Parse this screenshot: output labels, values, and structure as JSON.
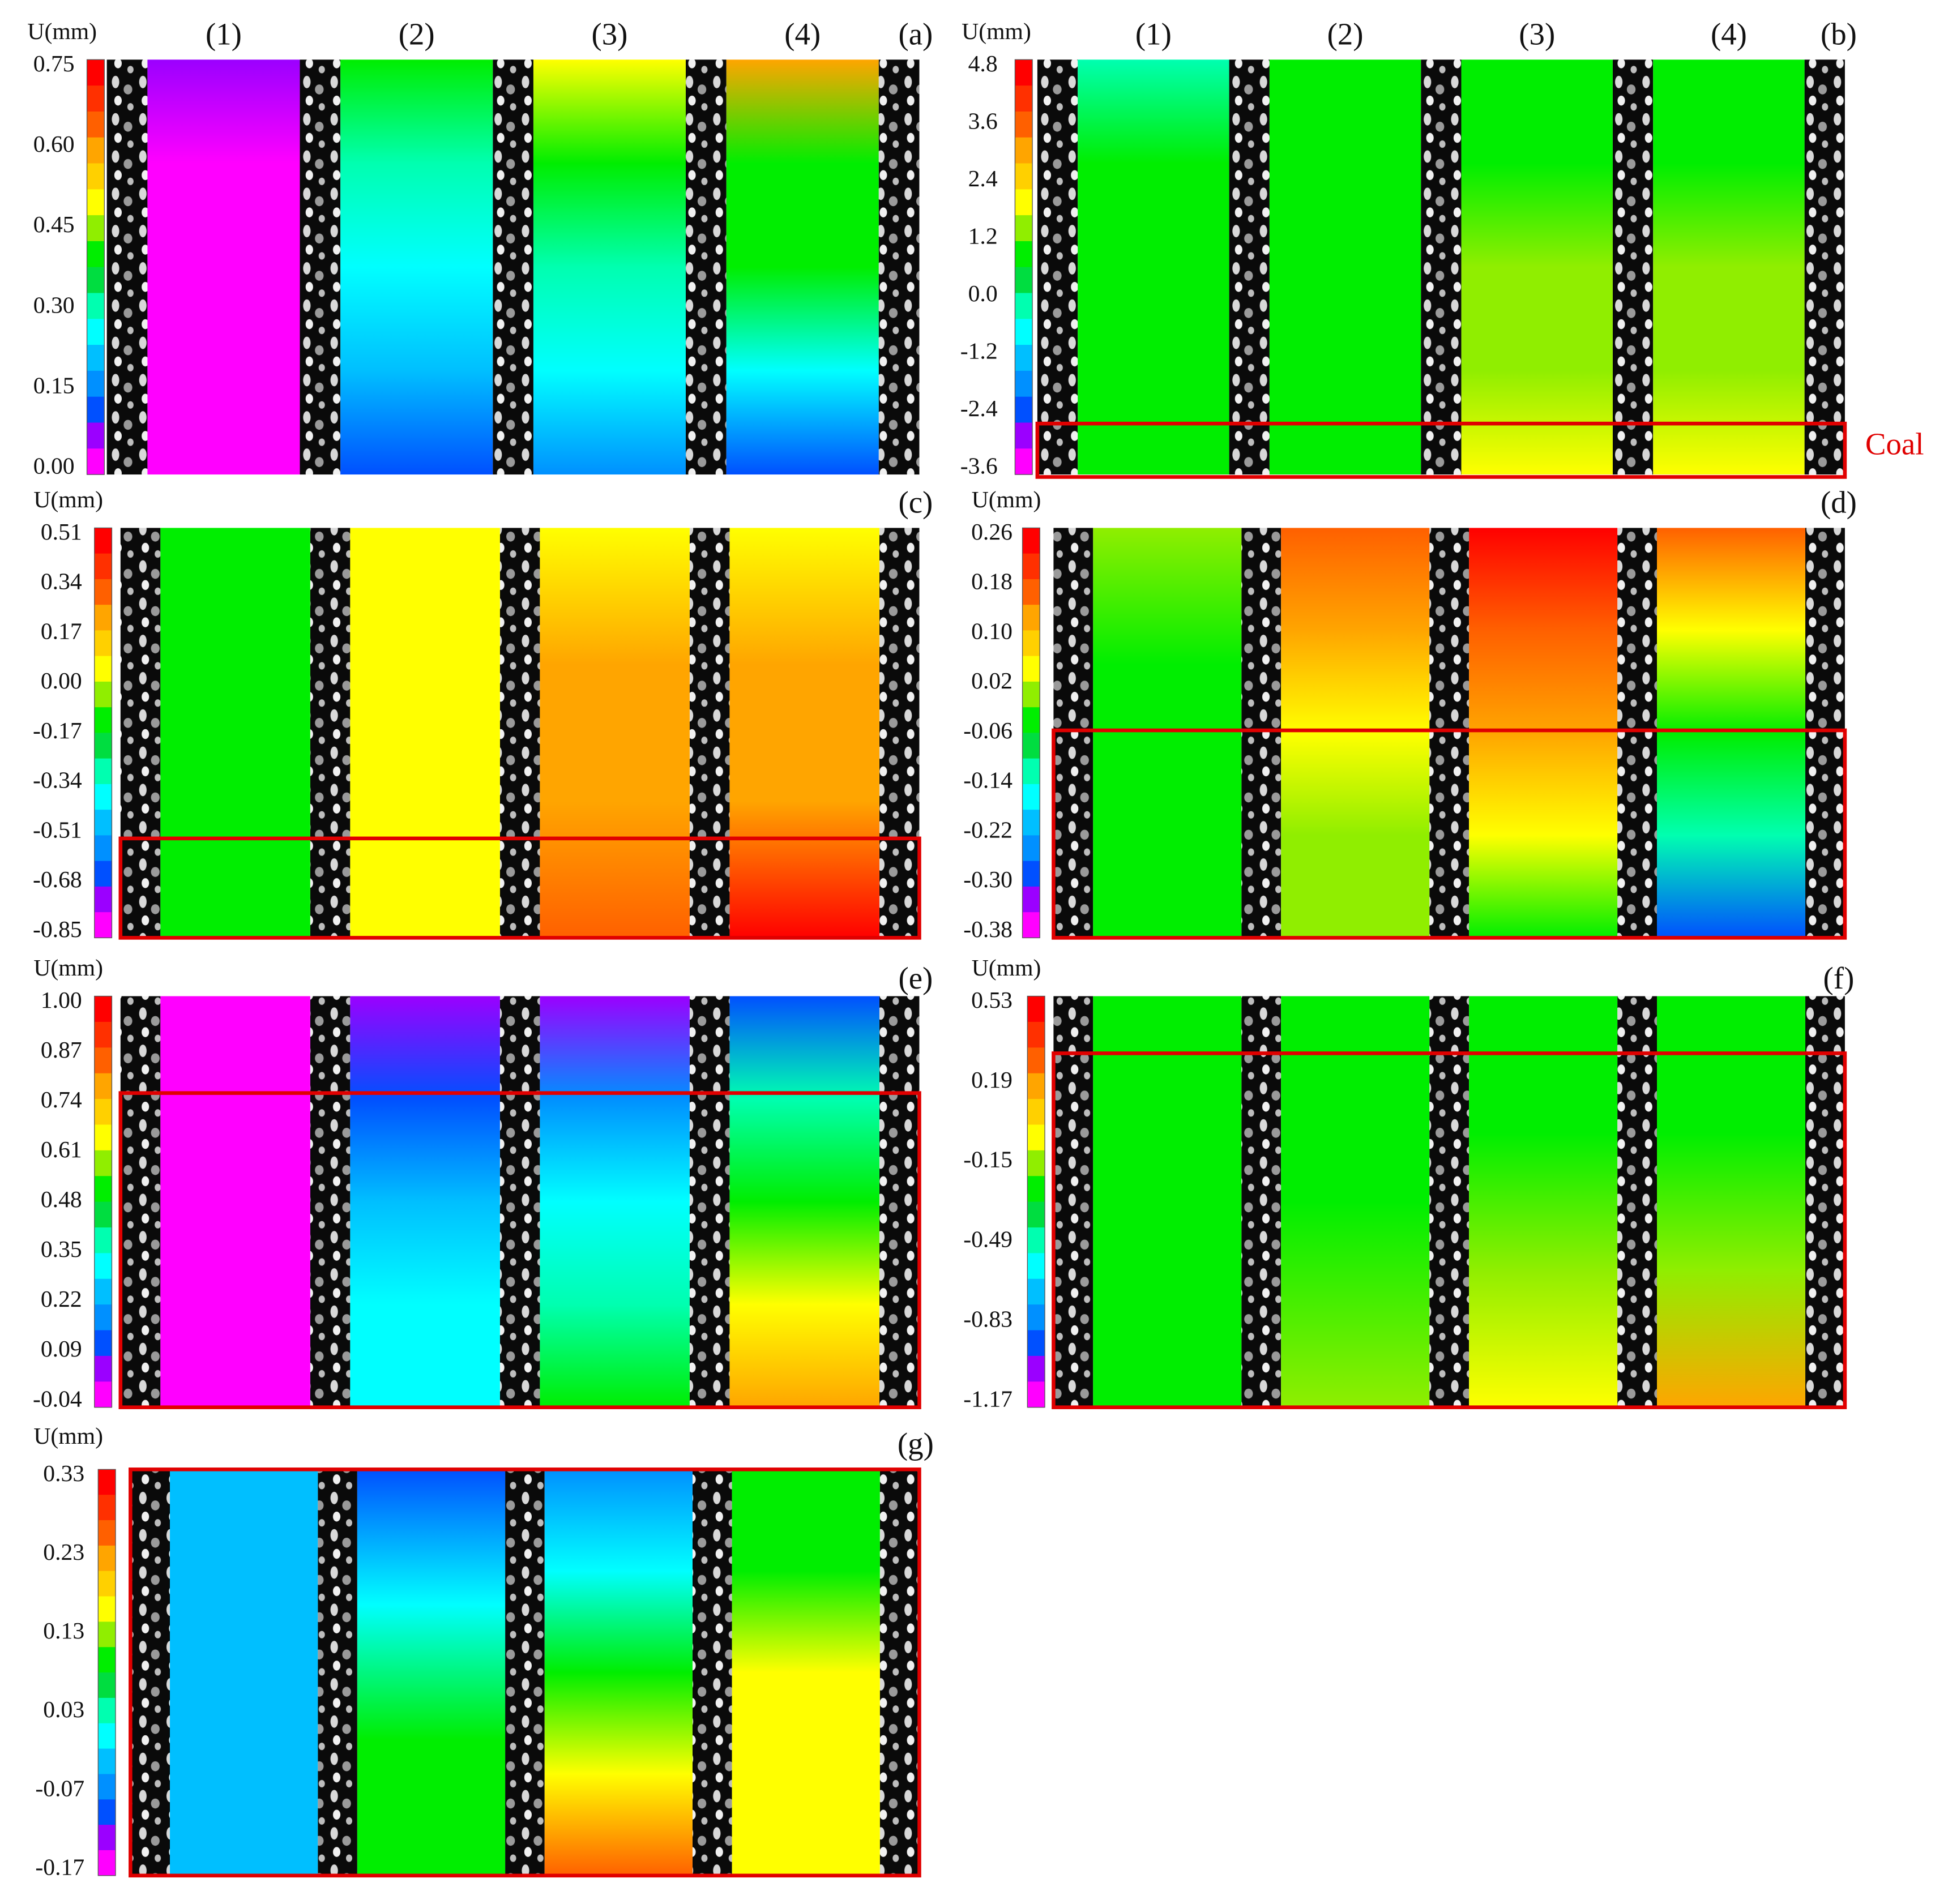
{
  "panels": [
    {
      "label": "(a)",
      "unit": "U(mm)",
      "ticks": [
        "0.75",
        "0.60",
        "0.45",
        "0.30",
        "0.15",
        "0.00"
      ],
      "columns": [
        "(1)",
        "(2)",
        "(3)",
        "(4)"
      ]
    },
    {
      "label": "(b)",
      "unit": "U(mm)",
      "ticks": [
        "4.8",
        "3.6",
        "2.4",
        "1.2",
        "0.0",
        "-1.2",
        "-2.4",
        "-3.6"
      ],
      "columns": [
        "(1)",
        "(2)",
        "(3)",
        "(4)"
      ],
      "annotation": "Coal"
    },
    {
      "label": "(c)",
      "unit": "U(mm)",
      "ticks": [
        "0.51",
        "0.34",
        "0.17",
        "0.00",
        "-0.17",
        "-0.34",
        "-0.51",
        "-0.68",
        "-0.85"
      ]
    },
    {
      "label": "(d)",
      "unit": "U(mm)",
      "ticks": [
        "0.26",
        "0.18",
        "0.10",
        "0.02",
        "-0.06",
        "-0.14",
        "-0.22",
        "-0.30",
        "-0.38"
      ]
    },
    {
      "label": "(e)",
      "unit": "U(mm)",
      "ticks": [
        "1.00",
        "0.87",
        "0.74",
        "0.61",
        "0.48",
        "0.35",
        "0.22",
        "0.09",
        "-0.04"
      ]
    },
    {
      "label": "(f)",
      "unit": "U(mm)",
      "ticks": [
        "0.53",
        "0.19",
        "-0.15",
        "-0.49",
        "-0.83",
        "-1.17"
      ]
    },
    {
      "label": "(g)",
      "unit": "U(mm)",
      "ticks": [
        "0.33",
        "0.23",
        "0.13",
        "0.03",
        "-0.07",
        "-0.17"
      ]
    }
  ]
}
